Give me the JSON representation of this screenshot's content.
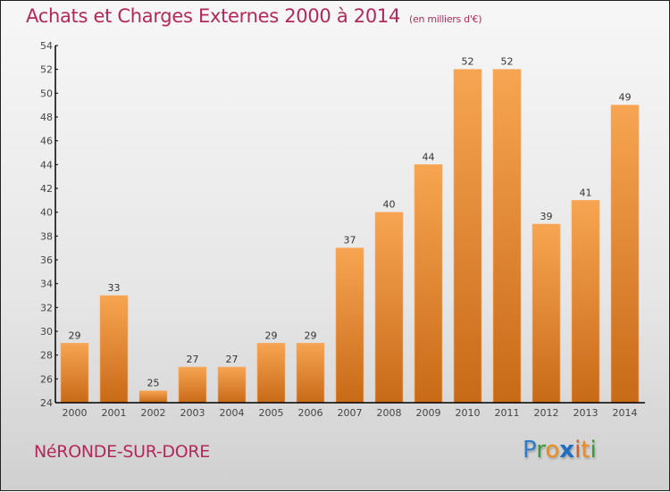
{
  "chart_data": {
    "type": "bar",
    "title": "Achats et Charges Externes 2000 à 2014",
    "subtitle": "(en milliers d'€)",
    "xlabel": "",
    "ylabel": "",
    "categories": [
      "2000",
      "2001",
      "2002",
      "2003",
      "2004",
      "2005",
      "2006",
      "2007",
      "2008",
      "2009",
      "2010",
      "2011",
      "2012",
      "2013",
      "2014"
    ],
    "values": [
      29,
      33,
      25,
      27,
      27,
      29,
      29,
      37,
      40,
      44,
      52,
      52,
      39,
      41,
      49
    ],
    "ylim": [
      24,
      54
    ],
    "yticks": [
      24,
      26,
      28,
      30,
      32,
      34,
      36,
      38,
      40,
      42,
      44,
      46,
      48,
      50,
      52,
      54
    ],
    "grid": false,
    "legend": "none",
    "bar_color_top": "#f7a552",
    "bar_color_bottom": "#c86a18"
  },
  "footer": {
    "location": "NéRONDE-SUR-DORE",
    "logo": [
      {
        "ch": "P",
        "color": "#2a7fc8"
      },
      {
        "ch": "r",
        "color": "#3a9a3a"
      },
      {
        "ch": "o",
        "color": "#f08a1a"
      },
      {
        "ch": "x",
        "color": "#1f6fc0"
      },
      {
        "ch": "i",
        "color": "#e05a1a"
      },
      {
        "ch": "t",
        "color": "#f08a1a"
      },
      {
        "ch": "i",
        "color": "#3a9a3a"
      }
    ]
  },
  "colors": {
    "title": "#b3285a",
    "axis": "#000000"
  }
}
